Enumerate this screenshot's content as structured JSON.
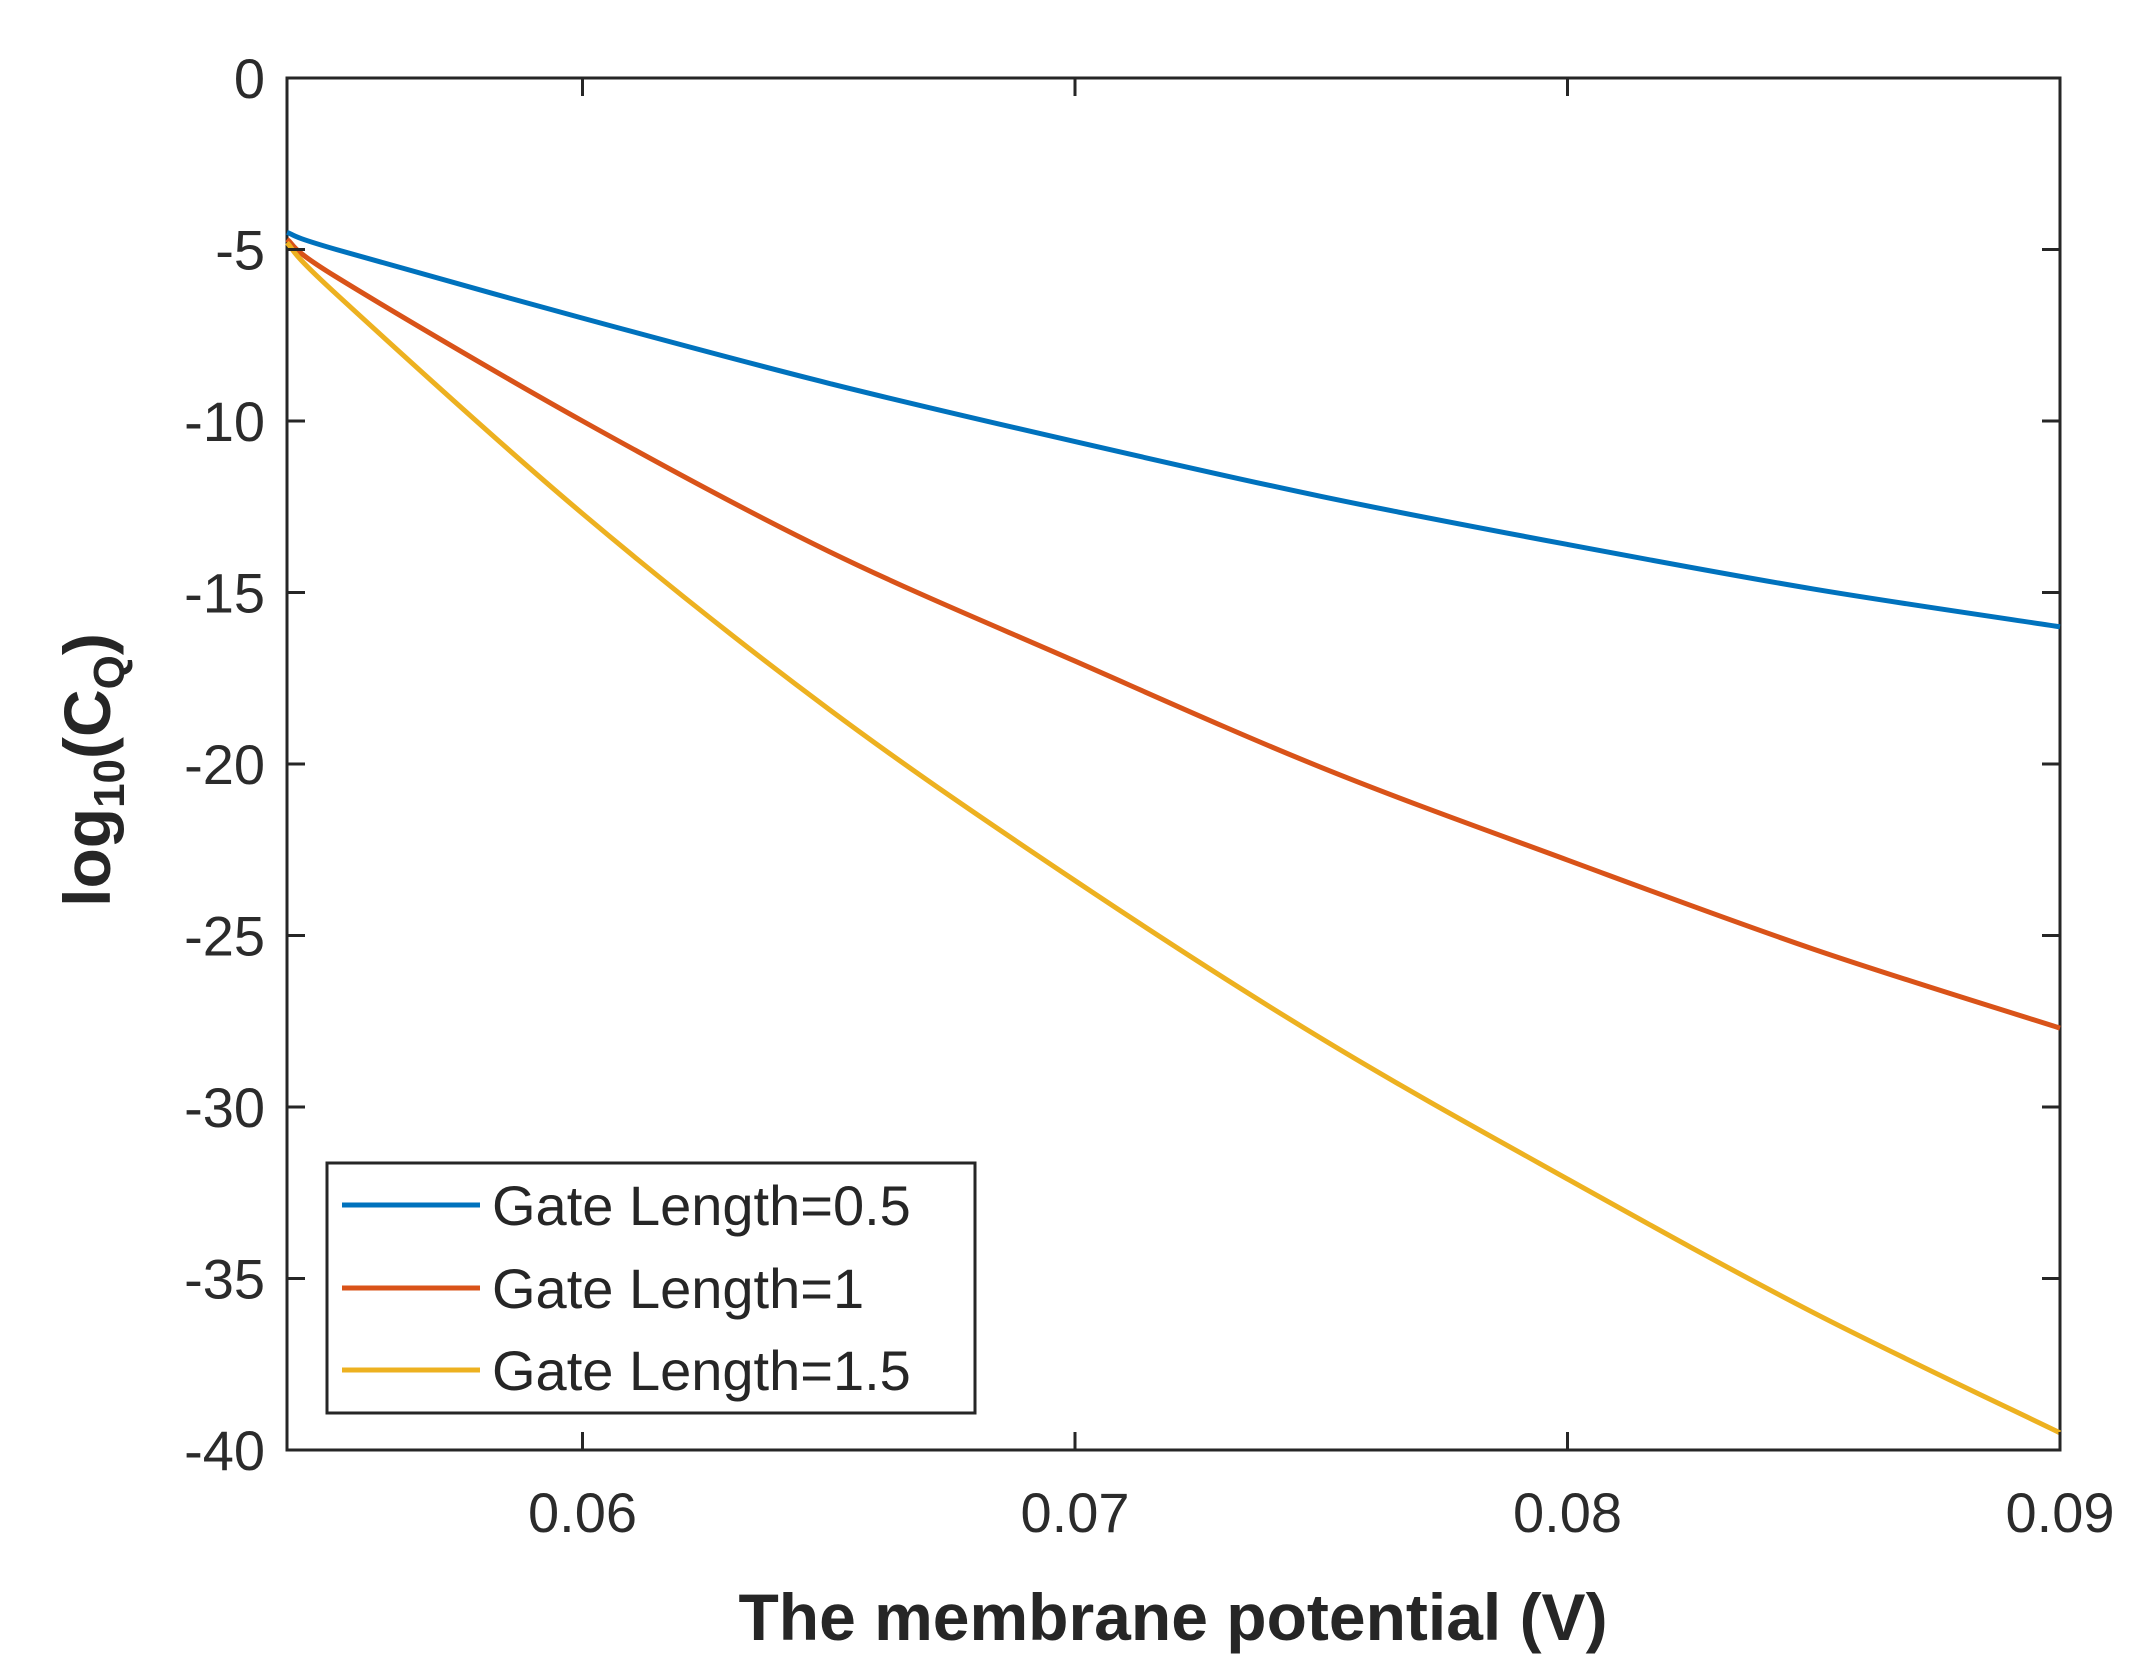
{
  "chart_data": {
    "type": "line",
    "xlabel": "The membrane potential (V)",
    "ylabel": {
      "prefix": "log",
      "sub1": "10",
      "mid": "(C",
      "sub2": "Q",
      "suffix": ")"
    },
    "xlim": [
      0.054,
      0.09
    ],
    "ylim": [
      -40,
      0
    ],
    "xticks": [
      0.06,
      0.07,
      0.08,
      0.09
    ],
    "xtick_labels": [
      "0.06",
      "0.07",
      "0.08",
      "0.09"
    ],
    "yticks": [
      0,
      -5,
      -10,
      -15,
      -20,
      -25,
      -30,
      -35,
      -40
    ],
    "ytick_labels": [
      "0",
      "-5",
      "-10",
      "-15",
      "-20",
      "-25",
      "-30",
      "-35",
      "-40"
    ],
    "grid": false,
    "legend_position": "bottom-left",
    "series": [
      {
        "name": "Gate Length=0.5",
        "color": "#0072bd",
        "x": [
          0.054,
          0.055,
          0.06,
          0.065,
          0.07,
          0.075,
          0.08,
          0.085,
          0.09
        ],
        "y": [
          -4.5,
          -5.0,
          -7.0,
          -8.9,
          -10.6,
          -12.2,
          -13.6,
          -14.9,
          -16.0
        ]
      },
      {
        "name": "Gate Length=1",
        "color": "#d95319",
        "x": [
          0.054,
          0.055,
          0.06,
          0.065,
          0.07,
          0.075,
          0.08,
          0.085,
          0.09
        ],
        "y": [
          -4.7,
          -5.8,
          -10.0,
          -13.8,
          -17.0,
          -20.1,
          -22.8,
          -25.4,
          -27.7
        ]
      },
      {
        "name": "Gate Length=1.5",
        "color": "#edb120",
        "x": [
          0.054,
          0.055,
          0.06,
          0.065,
          0.07,
          0.075,
          0.08,
          0.085,
          0.09
        ],
        "y": [
          -4.8,
          -6.3,
          -12.7,
          -18.4,
          -23.4,
          -28.0,
          -32.1,
          -36.0,
          -39.5
        ]
      }
    ]
  }
}
